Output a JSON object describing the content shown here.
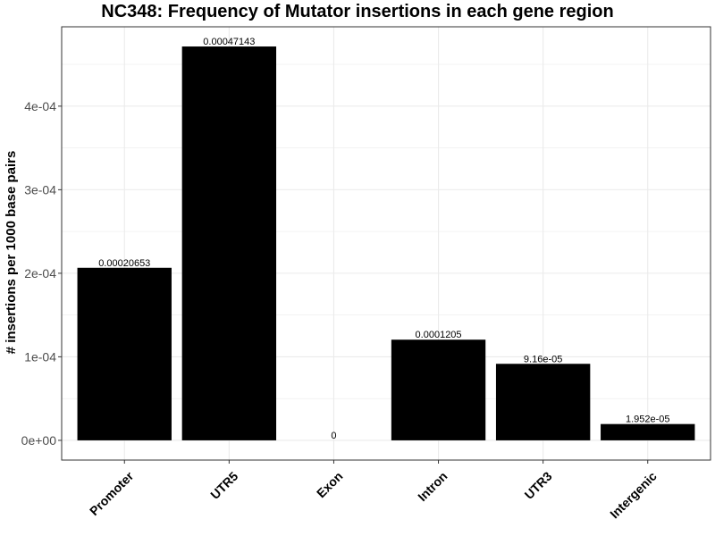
{
  "chart_data": {
    "type": "bar",
    "title": "NC348: Frequency of Mutator insertions in each gene region",
    "xlabel": "",
    "ylabel": "# insertions per 1000 base pairs",
    "categories": [
      "Promoter",
      "UTR5",
      "Exon",
      "Intron",
      "UTR3",
      "Intergenic"
    ],
    "values": [
      0.00020653,
      0.00047143,
      0,
      0.0001205,
      9.16e-05,
      1.952e-05
    ],
    "data_labels": [
      "0.00020653",
      "0.00047143",
      "0",
      "0.0001205",
      "9.16e-05",
      "1.952e-05"
    ],
    "y_ticks": [
      0,
      0.0001,
      0.0002,
      0.0003,
      0.0004
    ],
    "y_tick_labels": [
      "0e+00",
      "1e-04",
      "2e-04",
      "3e-04",
      "4e-04"
    ],
    "ylim": [
      -2.36e-05,
      0.000495
    ],
    "grid": true,
    "bar_color": "#000000",
    "panel_border_color": "#333333",
    "grid_color": "#ebebeb"
  }
}
